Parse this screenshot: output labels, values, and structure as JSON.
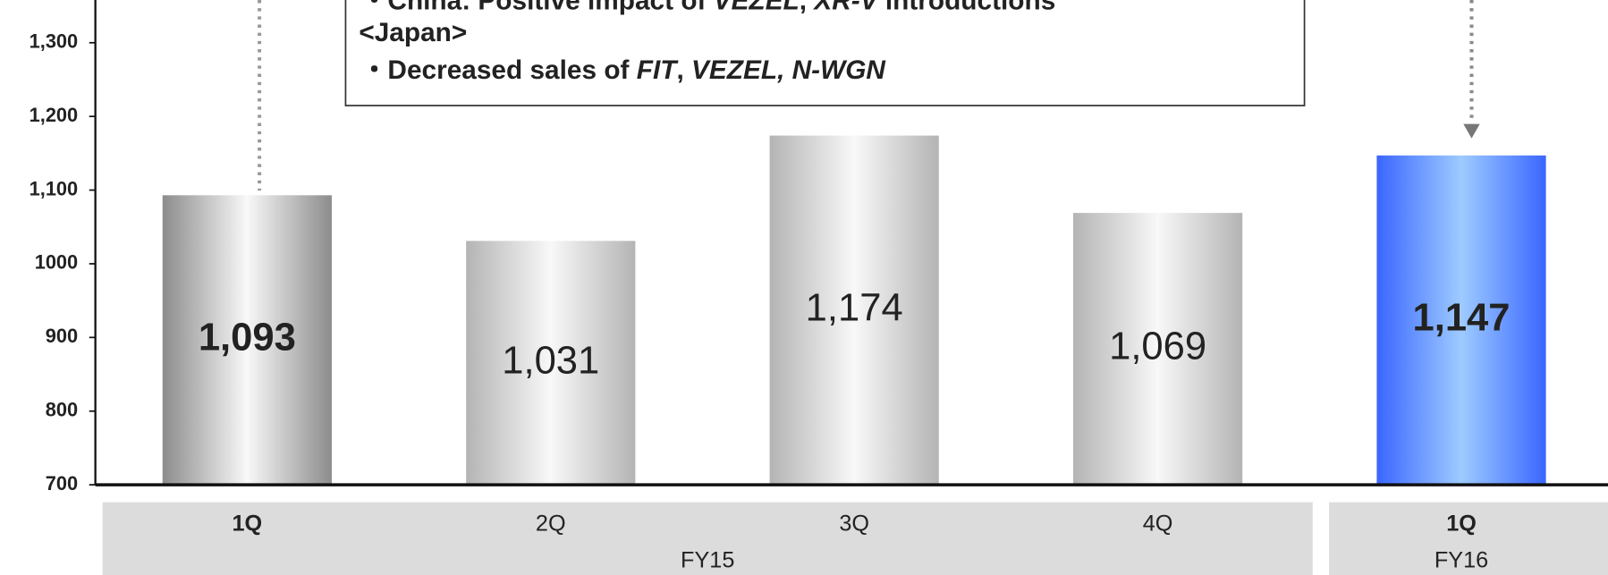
{
  "chart_data": {
    "type": "bar",
    "categories": [
      "1Q",
      "2Q",
      "3Q",
      "4Q",
      "1Q"
    ],
    "values": [
      1093,
      1031,
      1174,
      1069,
      1147
    ],
    "value_labels": [
      "1,093",
      "1,031",
      "1,174",
      "1,069",
      "1,147"
    ],
    "highlight": [
      true,
      false,
      false,
      false,
      true
    ],
    "colors": [
      "#8c8c8c",
      "#b4b4b4",
      "#b4b4b4",
      "#b4b4b4",
      "#3a66ff"
    ],
    "groups": [
      {
        "name": "FY15",
        "count": 4
      },
      {
        "name": "FY16",
        "count": 1
      }
    ],
    "ylim": [
      700,
      1358
    ],
    "yticks": [
      700,
      800,
      900,
      1000,
      {
        "value": 1100,
        "label": "1,100"
      },
      {
        "value": 1200,
        "label": "1,200"
      },
      {
        "value": 1300,
        "label": "1,300"
      }
    ],
    "annotation": {
      "lines": [
        [
          {
            "text": "・China: Positive impact of ",
            "italic": false
          },
          {
            "text": "VEZEL",
            "italic": true
          },
          {
            "text": ", ",
            "italic": false
          },
          {
            "text": "XR-V",
            "italic": true
          },
          {
            "text": " introductions",
            "italic": false
          }
        ],
        [
          {
            "text": "<Japan>",
            "italic": false
          }
        ],
        [
          {
            "text": "・Decreased sales of ",
            "italic": false
          },
          {
            "text": "FIT",
            "italic": true
          },
          {
            "text": ", ",
            "italic": false
          },
          {
            "text": "VEZEL, N-WGN",
            "italic": true
          }
        ]
      ]
    }
  }
}
